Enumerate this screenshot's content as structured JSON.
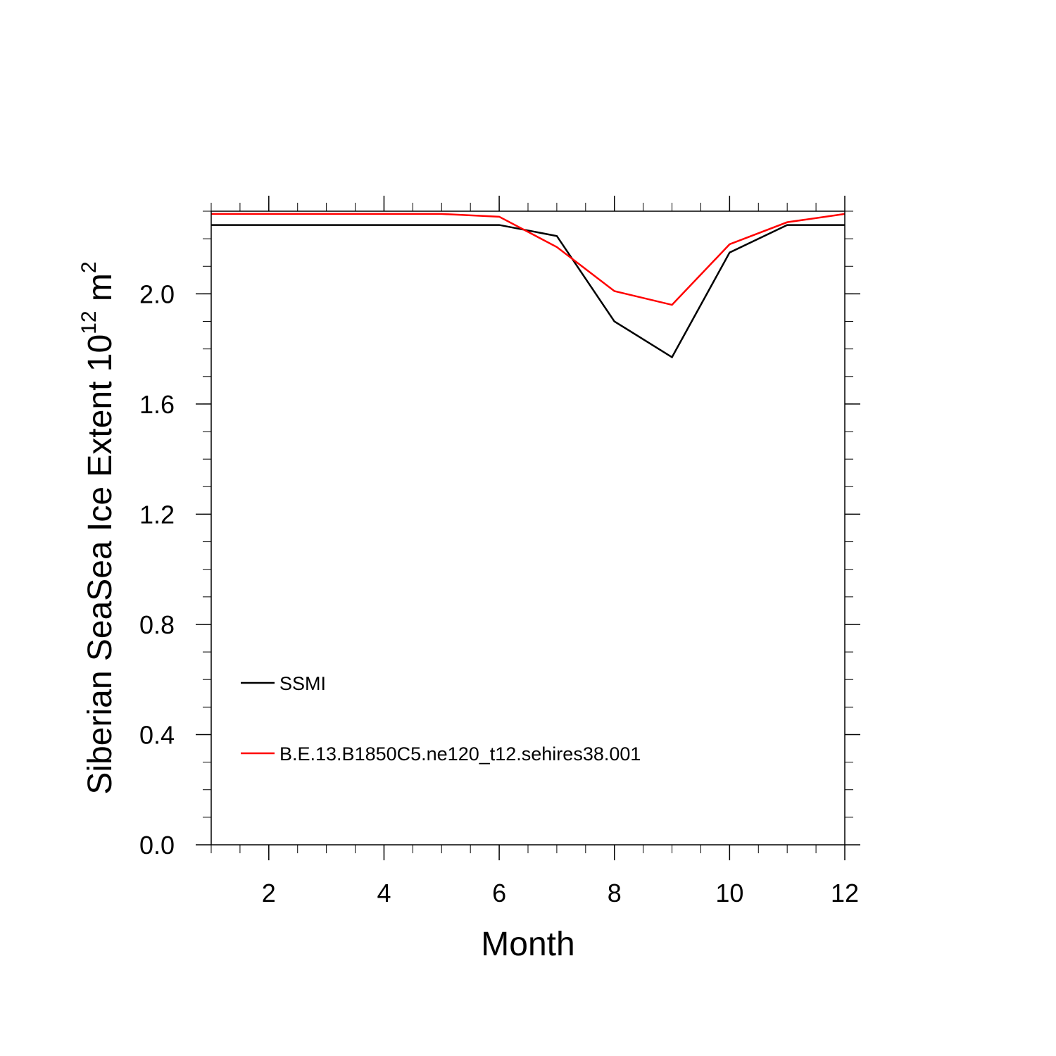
{
  "chart_data": {
    "type": "line",
    "xlabel": "Month",
    "ylabel_main": "Siberian SeaSea Ice Extent 10",
    "ylabel_exp": "12",
    "ylabel_unit": " m",
    "ylabel_unit_exp": "2",
    "xlim": [
      1,
      12
    ],
    "ylim": [
      0,
      2.3
    ],
    "x_ticks": [
      2,
      4,
      6,
      8,
      10,
      12
    ],
    "x_tick_labels": [
      "2",
      "4",
      "6",
      "8",
      "10",
      "12"
    ],
    "y_ticks": [
      0,
      0.4,
      0.8,
      1.2,
      1.6,
      2.0
    ],
    "y_tick_labels": [
      "0.0",
      "0.4",
      "0.8",
      "1.2",
      "1.6",
      "2.0"
    ],
    "x": [
      1,
      2,
      3,
      4,
      5,
      6,
      7,
      8,
      9,
      10,
      11,
      12
    ],
    "series": [
      {
        "name": "SSMI",
        "color": "#000000",
        "values": [
          2.25,
          2.25,
          2.25,
          2.25,
          2.25,
          2.25,
          2.21,
          1.9,
          1.77,
          2.15,
          2.25,
          2.25
        ]
      },
      {
        "name": "B.E.13.B1850C5.ne120_t12.sehires38.001",
        "color": "#ff0000",
        "values": [
          2.29,
          2.29,
          2.29,
          2.29,
          2.29,
          2.28,
          2.17,
          2.01,
          1.96,
          2.18,
          2.26,
          2.29
        ]
      }
    ],
    "legend_position": "lower-left",
    "grid": false
  }
}
